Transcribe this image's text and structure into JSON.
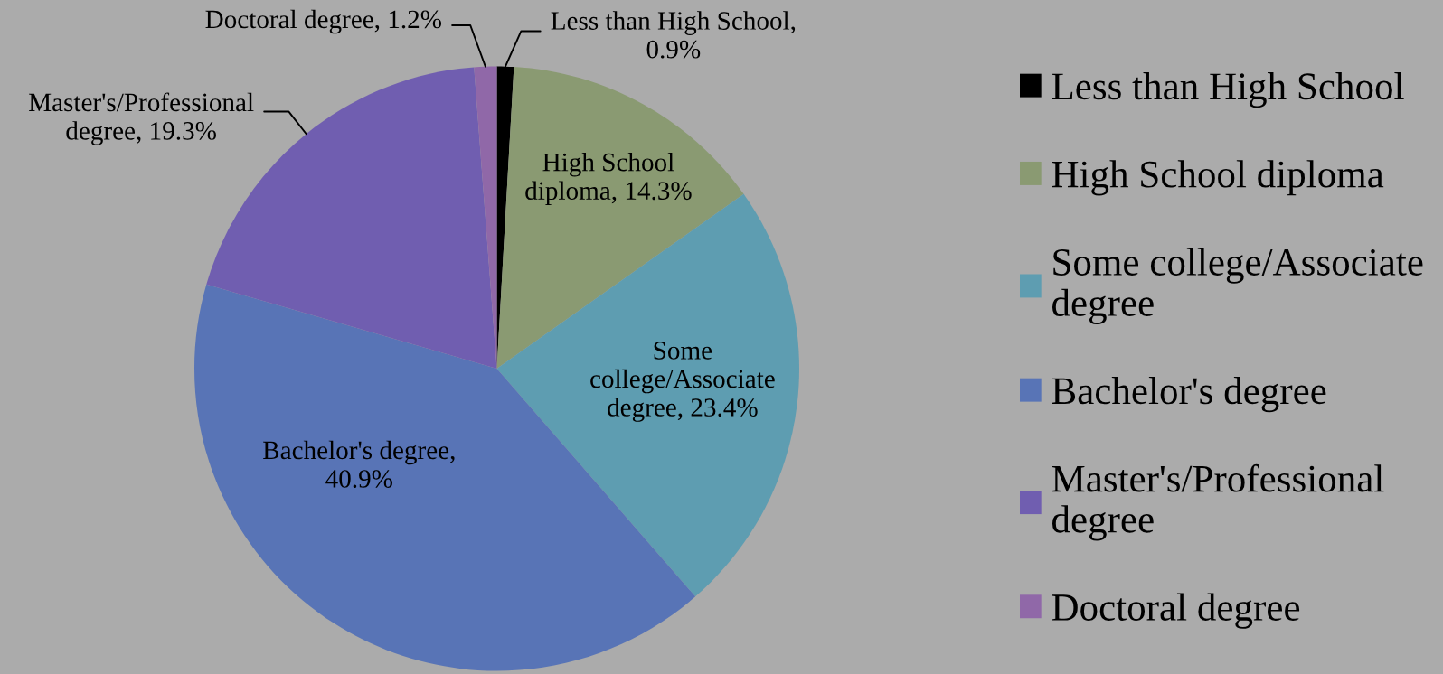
{
  "chart_data": {
    "type": "pie",
    "categories": [
      "Less than High School",
      "High School diploma",
      "Some college/Associate degree",
      "Bachelor's degree",
      "Master's/Professional degree",
      "Doctoral degree"
    ],
    "values": [
      0.9,
      14.3,
      23.4,
      40.9,
      19.3,
      1.2
    ],
    "colors": [
      "#000000",
      "#8a9a72",
      "#5e9db1",
      "#5874b6",
      "#705eb0",
      "#9068a8"
    ],
    "value_labels": [
      "Less than High School, 0.9%",
      "High School diploma, 14.3%",
      "Some college/Associate degree, 23.4%",
      "Bachelor's degree, 40.9%",
      "Master's/Professional degree, 19.3%",
      "Doctoral degree, 1.2%"
    ],
    "legend": "right"
  }
}
